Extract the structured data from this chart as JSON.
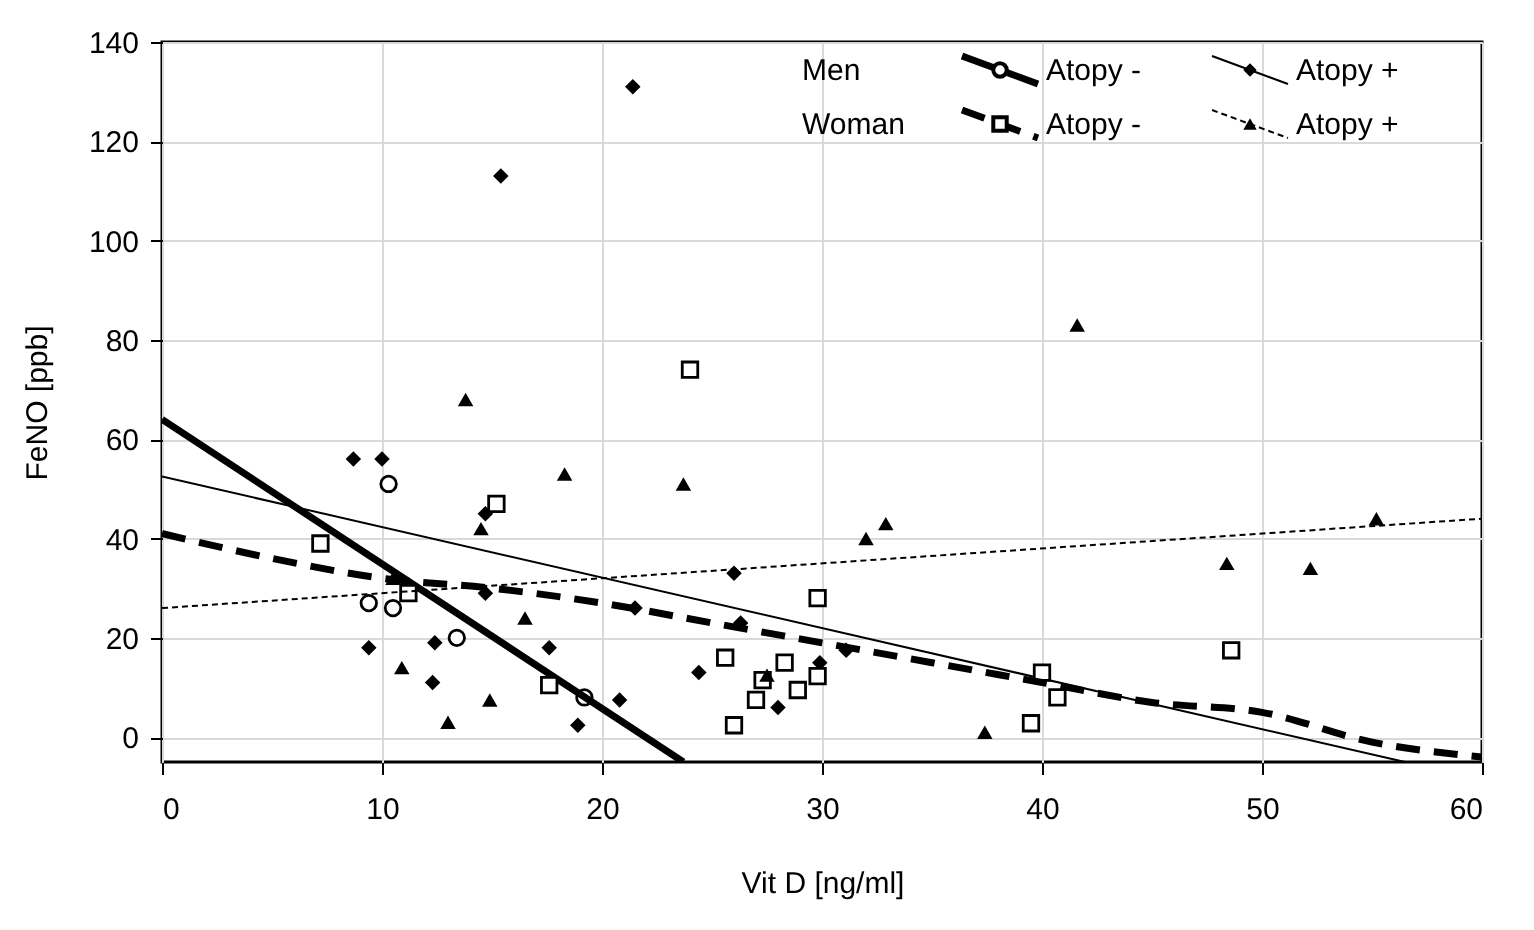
{
  "chart_data": {
    "type": "scatter",
    "xlabel": "Vit D [ng/ml]",
    "ylabel": "FeNO [ppb]",
    "xlim": [
      0,
      60
    ],
    "ylim": [
      -5,
      140
    ],
    "xticks": [
      0,
      10,
      20,
      30,
      40,
      50,
      60
    ],
    "yticks": [
      0,
      20,
      40,
      60,
      80,
      100,
      120,
      140
    ],
    "grid": true,
    "legend": "top right",
    "annotations": [
      "Men",
      "Woman"
    ],
    "series": [
      {
        "name": "Atopy -",
        "marker": "circle",
        "color": "#000000",
        "x": [
          10.3,
          9.4,
          10.5,
          13.4,
          19.2
        ],
        "values": [
          51,
          27,
          26,
          20,
          8
        ]
      },
      {
        "type": "line",
        "line_style": "solid",
        "color": "#000000",
        "x": [
          0,
          23.7
        ],
        "values": [
          64,
          -5
        ]
      },
      {
        "name": "Atopy +",
        "marker": "diamond",
        "color": "#000000",
        "x": [
          8.7,
          10,
          9.4,
          12.4,
          12.3,
          14.7,
          14.7,
          17.6,
          20.8,
          18.9,
          21.4,
          15.4,
          21.5,
          26,
          24.4,
          26.3,
          28,
          29.9,
          31.1
        ],
        "values": [
          56,
          56,
          18,
          19,
          11,
          45,
          29,
          18,
          7.5,
          2.4,
          131,
          113,
          26,
          33,
          13,
          23,
          6,
          15,
          17.5
        ]
      },
      {
        "type": "line",
        "line_style": "solid",
        "color": "#000000",
        "x": [
          0,
          56.5
        ],
        "values": [
          52.5,
          -5
        ]
      },
      {
        "name": "Atopy -",
        "marker": "square",
        "color": "#000000",
        "x": [
          7.2,
          15.2,
          11.2,
          17.6,
          24,
          29.8,
          25.6,
          28.3,
          27.3,
          27,
          28.9,
          29.8,
          26,
          40,
          40.7,
          39.5,
          48.6
        ],
        "values": [
          39,
          47,
          29,
          10.5,
          74,
          28,
          16,
          15,
          11.5,
          7.5,
          9.5,
          12.3,
          2.4,
          13,
          8,
          2.8,
          17.5
        ]
      },
      {
        "type": "line",
        "line_style": "dashed",
        "color": "#000000",
        "x": [
          0,
          5,
          10,
          15,
          20,
          25,
          30,
          35,
          40,
          45,
          50,
          55,
          60
        ],
        "values": [
          41,
          36,
          32,
          30,
          27,
          23,
          19,
          15,
          11,
          7,
          5,
          -1,
          -4
        ]
      },
      {
        "name": "Atopy +",
        "marker": "triangle",
        "color": "#000000",
        "x": [
          13.8,
          18.3,
          14.5,
          10.5,
          16.5,
          10.9,
          14.9,
          13,
          23.7,
          32,
          32.9,
          27.5,
          37.4,
          48.4,
          52.2,
          55.2,
          41.6
        ],
        "values": [
          68,
          53,
          42,
          32,
          24,
          14,
          7.5,
          3,
          51,
          40,
          43,
          12.5,
          1,
          35,
          34,
          44,
          83
        ]
      },
      {
        "type": "line",
        "line_style": "dotted",
        "color": "#000000",
        "x": [
          0,
          60
        ],
        "values": [
          26,
          44
        ]
      }
    ]
  }
}
